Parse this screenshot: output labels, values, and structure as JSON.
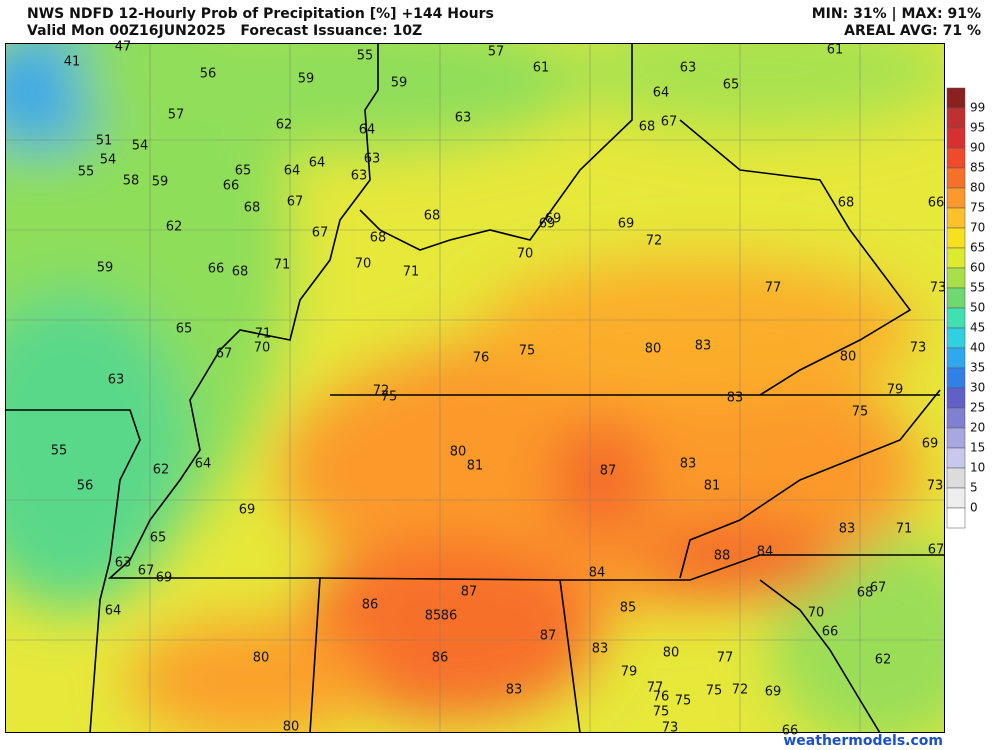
{
  "header": {
    "title": "NWS NDFD 12-Hourly Prob of Precipitation [%] +144 Hours",
    "valid": "Valid Mon 00Z16JUN2025   Forecast Issuance: 10Z",
    "minmax": "MIN: 31% | MAX: 91%",
    "areal_avg": "AREAL AVG: 71 %"
  },
  "colorbar": {
    "labels": [
      99,
      95,
      90,
      85,
      80,
      75,
      70,
      65,
      60,
      55,
      50,
      45,
      40,
      35,
      30,
      25,
      20,
      15,
      10,
      5,
      0
    ],
    "colors": [
      "#c03030",
      "#d83030",
      "#ef4a2a",
      "#f7702a",
      "#fb9a2a",
      "#fbc02a",
      "#f6e020",
      "#dcea30",
      "#a8e04a",
      "#70d870",
      "#40e0b0",
      "#30d0e0",
      "#30a8f0",
      "#3080e8",
      "#6060c8",
      "#8080d0",
      "#a8a8e0",
      "#c8c8ec",
      "#dcdcdc",
      "#eeeeee",
      "#ffffff"
    ]
  },
  "map_labels": [
    47,
    41,
    56,
    59,
    55,
    59,
    57,
    61,
    63,
    64,
    63,
    63,
    57,
    62,
    51,
    54,
    54,
    55,
    58,
    59,
    65,
    64,
    64,
    66,
    68,
    67,
    62,
    67,
    68,
    68,
    70,
    71,
    66,
    68,
    71,
    59,
    65,
    71,
    70,
    67,
    63,
    70,
    69,
    69,
    69,
    72,
    63,
    64,
    65,
    68,
    67,
    61,
    68,
    66,
    73,
    77,
    76,
    75,
    80,
    83,
    80,
    73,
    79,
    72,
    75,
    83,
    75,
    55,
    62,
    64,
    80,
    81,
    87,
    83,
    81,
    69,
    73,
    56,
    69,
    65,
    83,
    71,
    88,
    84,
    67,
    63,
    67,
    69,
    84,
    87,
    86,
    85,
    86,
    85,
    87,
    64,
    67,
    68,
    70,
    66,
    86,
    83,
    80,
    77,
    80,
    62,
    79,
    77,
    76,
    75,
    75,
    72,
    69,
    83,
    75,
    73,
    80,
    66
  ],
  "watermark": "weathermodels.com"
}
